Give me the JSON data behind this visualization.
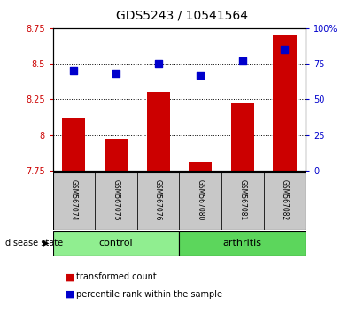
{
  "title": "GDS5243 / 10541564",
  "samples": [
    "GSM567074",
    "GSM567075",
    "GSM567076",
    "GSM567080",
    "GSM567081",
    "GSM567082"
  ],
  "transformed_count": [
    8.12,
    7.97,
    8.3,
    7.81,
    8.22,
    8.7
  ],
  "percentile_rank": [
    70,
    68,
    75,
    67,
    77,
    85
  ],
  "bar_baseline": 7.75,
  "ylim_left": [
    7.75,
    8.75
  ],
  "ylim_right": [
    0,
    100
  ],
  "yticks_left": [
    7.75,
    8.0,
    8.25,
    8.5,
    8.75
  ],
  "ytick_labels_left": [
    "7.75",
    "8",
    "8.25",
    "8.5",
    "8.75"
  ],
  "yticks_right": [
    0,
    25,
    50,
    75,
    100
  ],
  "ytick_labels_right": [
    "0",
    "25",
    "50",
    "75",
    "100%"
  ],
  "bar_color": "#cc0000",
  "dot_color": "#0000cc",
  "grid_color": "#000000",
  "disease_state_label": "disease state",
  "groups": [
    {
      "label": "control",
      "indices": [
        0,
        1,
        2
      ],
      "color": "#90EE90"
    },
    {
      "label": "arthritis",
      "indices": [
        3,
        4,
        5
      ],
      "color": "#5CD65C"
    }
  ],
  "legend_bar_label": "transformed count",
  "legend_dot_label": "percentile rank within the sample",
  "bg_color": "#ffffff",
  "plot_bg_color": "#ffffff",
  "sample_area_color": "#c8c8c8",
  "bar_width": 0.55,
  "dot_size": 30,
  "title_fontsize": 10,
  "tick_fontsize": 7,
  "label_fontsize": 7,
  "left_tick_color": "#cc0000",
  "right_tick_color": "#0000cc"
}
